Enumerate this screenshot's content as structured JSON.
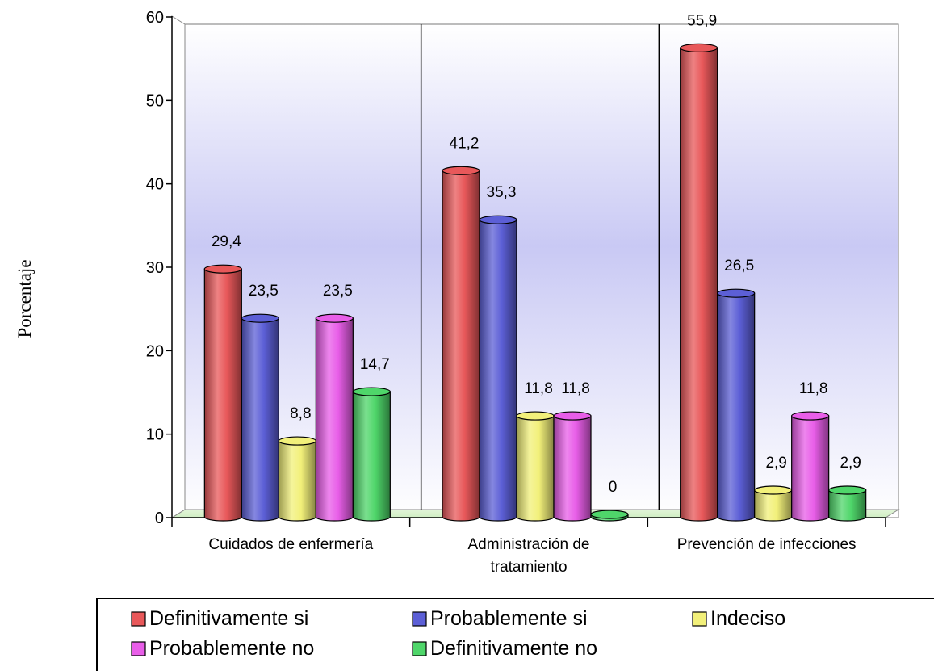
{
  "chart_data": {
    "type": "bar",
    "ylabel": "Porcentaje",
    "ylim": [
      0,
      60
    ],
    "yticks": [
      "0",
      "10",
      "20",
      "30",
      "40",
      "50",
      "60"
    ],
    "categories": [
      [
        "Cuidados de enfermería"
      ],
      [
        "Administración de",
        "tratamiento"
      ],
      [
        "Prevención de infecciones"
      ]
    ],
    "series": [
      {
        "name": "Definitivamente si",
        "color": "#e8585a",
        "values": [
          29.4,
          41.2,
          55.9
        ],
        "labels": [
          "29,4",
          "41,2",
          "55,9"
        ]
      },
      {
        "name": "Probablemente si",
        "color": "#5c5fd6",
        "values": [
          23.5,
          35.3,
          26.5
        ],
        "labels": [
          "23,5",
          "35,3",
          "26,5"
        ]
      },
      {
        "name": "Indeciso",
        "color": "#f2f07a",
        "values": [
          8.8,
          11.8,
          2.9
        ],
        "labels": [
          "8,8",
          "11,8",
          "2,9"
        ]
      },
      {
        "name": "Probablemente no",
        "color": "#e85ee8",
        "values": [
          23.5,
          11.8,
          11.8
        ],
        "labels": [
          "23,5",
          "11,8",
          "11,8"
        ]
      },
      {
        "name": "Definitivamente no",
        "color": "#4fd66a",
        "values": [
          14.7,
          0,
          2.9
        ],
        "labels": [
          "14,7",
          "0",
          "2,9"
        ]
      }
    ],
    "legend_position": "bottom",
    "grid": false,
    "background": "blue-white gradient"
  }
}
